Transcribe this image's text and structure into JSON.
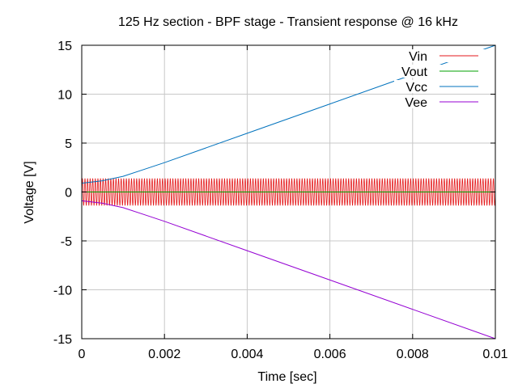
{
  "chart_data": {
    "type": "line",
    "title": "125 Hz section - BPF stage - Transient response @ 16 kHz",
    "xlabel": "Time [sec]",
    "ylabel": "Voltage [V]",
    "xlim": [
      0,
      0.01
    ],
    "ylim": [
      -15,
      15
    ],
    "x_ticks": [
      "0",
      "0.002",
      "0.004",
      "0.006",
      "0.008",
      "0.01"
    ],
    "y_ticks": [
      "-15",
      "-10",
      "-5",
      "0",
      "5",
      "10",
      "15"
    ],
    "grid": true,
    "legend_position": "top-right",
    "series": [
      {
        "name": "Vin",
        "color": "#e41a1c",
        "kind": "sine",
        "amplitude": 1.4,
        "frequency_hz": 16000,
        "offset": 0
      },
      {
        "name": "Vout",
        "color": "#00a000",
        "x": [
          0,
          0.01
        ],
        "y": [
          0,
          0
        ]
      },
      {
        "name": "Vcc",
        "color": "#0072bd",
        "x": [
          0,
          0.0005,
          0.001,
          0.0015,
          0.002,
          0.004,
          0.006,
          0.008,
          0.01
        ],
        "y": [
          0.9,
          1.15,
          1.6,
          2.3,
          3.0,
          6.0,
          9.0,
          12.0,
          15.0
        ]
      },
      {
        "name": "Vee",
        "color": "#9400d3",
        "x": [
          0,
          0.0005,
          0.001,
          0.0015,
          0.002,
          0.004,
          0.006,
          0.008,
          0.01
        ],
        "y": [
          -0.9,
          -1.15,
          -1.6,
          -2.3,
          -3.0,
          -6.0,
          -9.0,
          -12.0,
          -15.0
        ]
      }
    ]
  }
}
